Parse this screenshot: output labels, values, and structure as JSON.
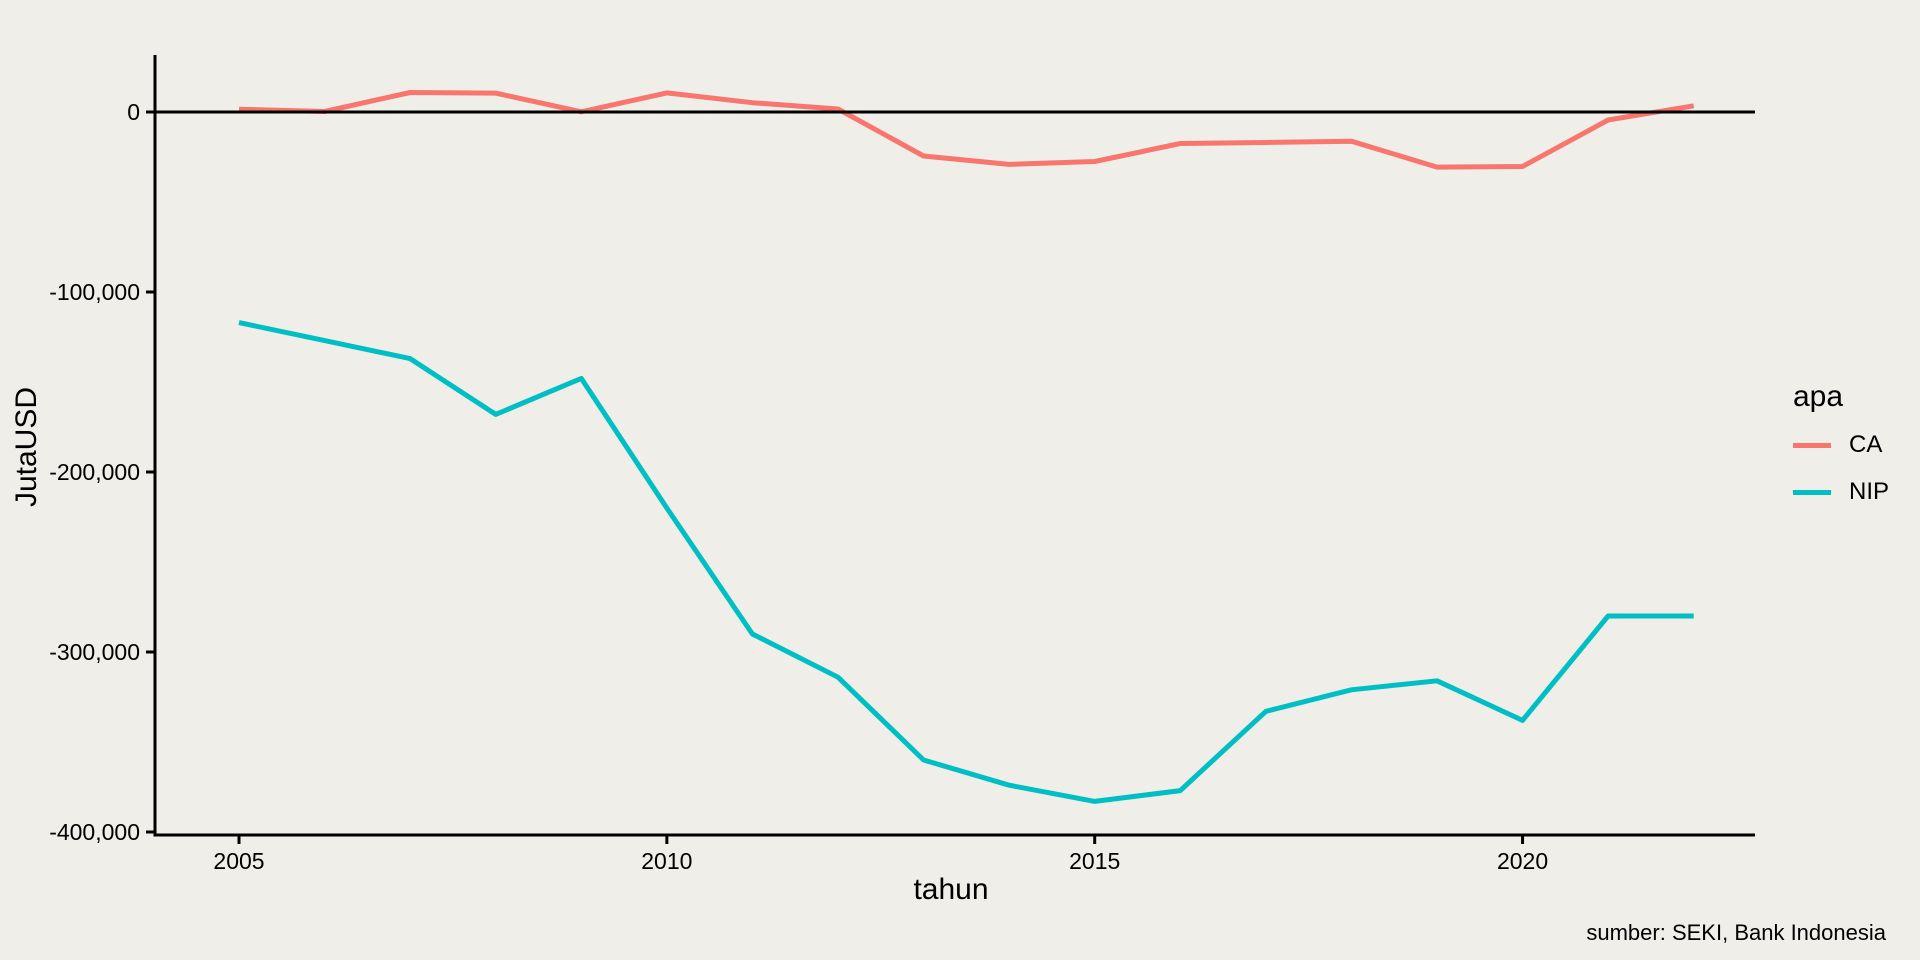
{
  "figure": {
    "background": "#EFEEE8",
    "caption": "sumber: SEKI, Bank Indonesia",
    "text_color": "#000000"
  },
  "legend": {
    "title": "apa",
    "entries": [
      {
        "label": "CA",
        "color": "#F8766D"
      },
      {
        "label": "NIP",
        "color": "#00BFC4"
      }
    ]
  },
  "chart_data": {
    "type": "line",
    "title": "",
    "xlabel": "tahun",
    "ylabel": "JutaUSD",
    "x": [
      2005,
      2006,
      2007,
      2008,
      2009,
      2010,
      2011,
      2012,
      2013,
      2014,
      2015,
      2016,
      2017,
      2018,
      2019,
      2020,
      2021,
      2022
    ],
    "series": [
      {
        "name": "CA",
        "color": "#F8766D",
        "values": [
          1563,
          278,
          10859,
          10493,
          126,
          10628,
          5144,
          1685,
          -24418,
          -29109,
          -27510,
          -17519,
          -16952,
          -16196,
          -30633,
          -30279,
          -4433,
          3459
        ]
      },
      {
        "name": "NIP",
        "color": "#00BFC4",
        "values": [
          -117000,
          -127000,
          -137000,
          -168000,
          -148000,
          -220000,
          -290000,
          -314000,
          -360000,
          -374000,
          -383000,
          -377000,
          -333000,
          -321000,
          -316000,
          -338000,
          -280000,
          -280000
        ]
      }
    ],
    "x_ticks": [
      2005,
      2010,
      2015,
      2020
    ],
    "x_tick_labels": [
      "2005",
      "2010",
      "2015",
      "2020"
    ],
    "y_ticks": [
      0,
      -100000,
      -200000,
      -300000,
      -400000
    ],
    "y_tick_labels": [
      "0",
      "-100,000",
      "-200,000",
      "-300,000",
      "-400,000"
    ],
    "xlim": [
      2004,
      2023
    ],
    "ylim": [
      -402000,
      32000
    ],
    "grid": false,
    "zero_line": true,
    "legend_position": "right",
    "axis_color": "#000000"
  }
}
